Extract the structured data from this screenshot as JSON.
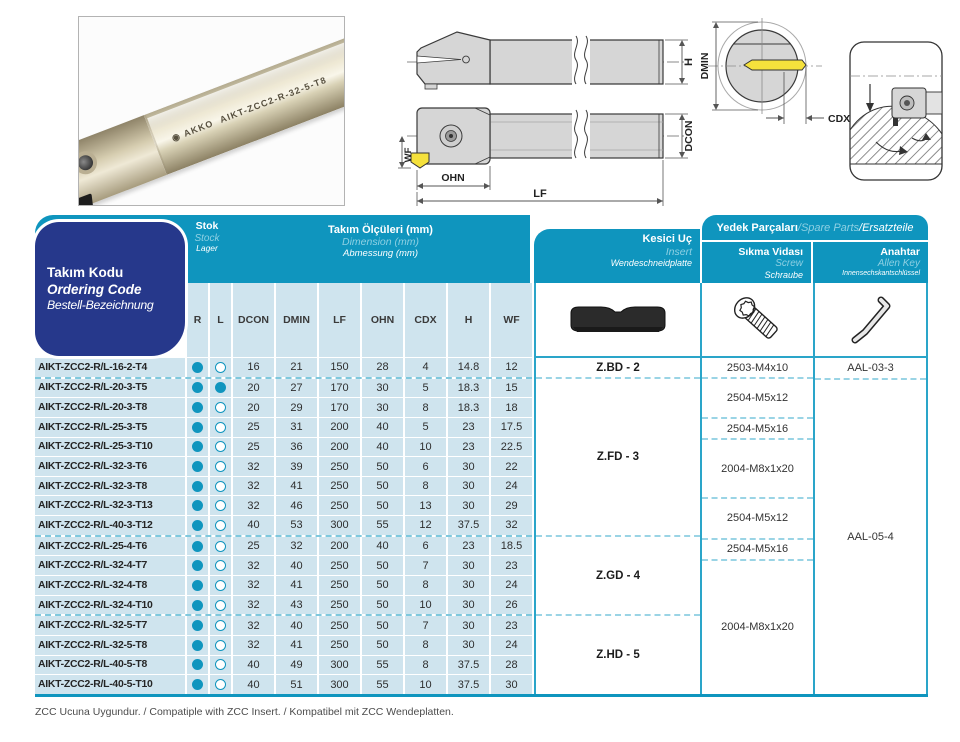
{
  "photo": {
    "brand": "AKKO",
    "marking": "AIKT-ZCC2-R-32-5-T8"
  },
  "diagram": {
    "h": "H",
    "dcon": "DCON",
    "dmin": "DMIN",
    "cdx": "CDX",
    "wf": "WF",
    "ohn": "OHN",
    "lf": "LF"
  },
  "colors": {
    "teal": "#0f95be",
    "dark_blue": "#26388b",
    "light_blue": "#cfe4ee",
    "cyan_line": "#2aa5c9",
    "dash": "#9ad4e5",
    "insert_yellow": "#f5e13c"
  },
  "table": {
    "code_header": {
      "tr": "Takım Kodu",
      "en": "Ordering Code",
      "de": "Bestell-Bezeichnung"
    },
    "stock_header": {
      "tr": "Stok",
      "en": "Stock",
      "de": "Lager"
    },
    "dim_header": {
      "tr": "Takım Ölçüleri (mm)",
      "en": "Dimension (mm)",
      "de": "Abmessung (mm)"
    },
    "spare_header": {
      "tr": "Yedek Parçaları",
      "en": "Spare Parts",
      "de": "Ersatzteile",
      "sep": " / "
    },
    "insert_header": {
      "tr": "Kesici Uç",
      "en": "Insert",
      "de": "Wendeschneidplatte"
    },
    "screw_header": {
      "tr": "Sıkma Vidası",
      "en": "Screw",
      "de": "Schraube"
    },
    "key_header": {
      "tr": "Anahtar",
      "en": "Allen Key",
      "de": "Innensechskantschlüssel"
    },
    "columns": [
      "R",
      "L",
      "DCON",
      "DMIN",
      "LF",
      "OHN",
      "CDX",
      "H",
      "WF"
    ],
    "rows": [
      {
        "code": "AIKT-ZCC2-R/L-16-2-T4",
        "r": true,
        "l": false,
        "vals": [
          "16",
          "21",
          "150",
          "28",
          "4",
          "14.8",
          "12"
        ],
        "sep": true
      },
      {
        "code": "AIKT-ZCC2-R/L-20-3-T5",
        "r": true,
        "l": true,
        "vals": [
          "20",
          "27",
          "170",
          "30",
          "5",
          "18.3",
          "15"
        ],
        "sep": false
      },
      {
        "code": "AIKT-ZCC2-R/L-20-3-T8",
        "r": true,
        "l": false,
        "vals": [
          "20",
          "29",
          "170",
          "30",
          "8",
          "18.3",
          "18"
        ],
        "sep": false
      },
      {
        "code": "AIKT-ZCC2-R/L-25-3-T5",
        "r": true,
        "l": false,
        "vals": [
          "25",
          "31",
          "200",
          "40",
          "5",
          "23",
          "17.5"
        ],
        "sep": false
      },
      {
        "code": "AIKT-ZCC2-R/L-25-3-T10",
        "r": true,
        "l": false,
        "vals": [
          "25",
          "36",
          "200",
          "40",
          "10",
          "23",
          "22.5"
        ],
        "sep": false
      },
      {
        "code": "AIKT-ZCC2-R/L-32-3-T6",
        "r": true,
        "l": false,
        "vals": [
          "32",
          "39",
          "250",
          "50",
          "6",
          "30",
          "22"
        ],
        "sep": false
      },
      {
        "code": "AIKT-ZCC2-R/L-32-3-T8",
        "r": true,
        "l": false,
        "vals": [
          "32",
          "41",
          "250",
          "50",
          "8",
          "30",
          "24"
        ],
        "sep": false
      },
      {
        "code": "AIKT-ZCC2-R/L-32-3-T13",
        "r": true,
        "l": false,
        "vals": [
          "32",
          "46",
          "250",
          "50",
          "13",
          "30",
          "29"
        ],
        "sep": false
      },
      {
        "code": "AIKT-ZCC2-R/L-40-3-T12",
        "r": true,
        "l": false,
        "vals": [
          "40",
          "53",
          "300",
          "55",
          "12",
          "37.5",
          "32"
        ],
        "sep": true
      },
      {
        "code": "AIKT-ZCC2-R/L-25-4-T6",
        "r": true,
        "l": false,
        "vals": [
          "25",
          "32",
          "200",
          "40",
          "6",
          "23",
          "18.5"
        ],
        "sep": false
      },
      {
        "code": "AIKT-ZCC2-R/L-32-4-T7",
        "r": true,
        "l": false,
        "vals": [
          "32",
          "40",
          "250",
          "50",
          "7",
          "30",
          "23"
        ],
        "sep": false
      },
      {
        "code": "AIKT-ZCC2-R/L-32-4-T8",
        "r": true,
        "l": false,
        "vals": [
          "32",
          "41",
          "250",
          "50",
          "8",
          "30",
          "24"
        ],
        "sep": false
      },
      {
        "code": "AIKT-ZCC2-R/L-32-4-T10",
        "r": true,
        "l": false,
        "vals": [
          "32",
          "43",
          "250",
          "50",
          "10",
          "30",
          "26"
        ],
        "sep": true
      },
      {
        "code": "AIKT-ZCC2-R/L-32-5-T7",
        "r": true,
        "l": false,
        "vals": [
          "32",
          "40",
          "250",
          "50",
          "7",
          "30",
          "23"
        ],
        "sep": false
      },
      {
        "code": "AIKT-ZCC2-R/L-32-5-T8",
        "r": true,
        "l": false,
        "vals": [
          "32",
          "41",
          "250",
          "50",
          "8",
          "30",
          "24"
        ],
        "sep": false
      },
      {
        "code": "AIKT-ZCC2-R/L-40-5-T8",
        "r": true,
        "l": false,
        "vals": [
          "40",
          "49",
          "300",
          "55",
          "8",
          "37.5",
          "28"
        ],
        "sep": false
      },
      {
        "code": "AIKT-ZCC2-R/L-40-5-T10",
        "r": true,
        "l": false,
        "vals": [
          "40",
          "51",
          "300",
          "55",
          "10",
          "37.5",
          "30"
        ],
        "sep": false
      }
    ],
    "insert_groups": [
      {
        "label": "Z.BD - 2",
        "span": 1
      },
      {
        "label": "Z.FD - 3",
        "span": 8
      },
      {
        "label": "Z.GD - 4",
        "span": 4
      },
      {
        "label": "Z.HD - 5",
        "span": 4
      }
    ],
    "screw_groups": [
      {
        "label": "2503-M4x10",
        "span": 1
      },
      {
        "label": "2504-M5x12",
        "span": 2
      },
      {
        "label": "2504-M5x16",
        "span": 1
      },
      {
        "label": "2004-M8x1x20",
        "span": 3
      },
      {
        "label": "2504-M5x12",
        "span": 2
      },
      {
        "label": "2504-M5x16",
        "span": 1
      },
      {
        "label": "2004-M8x1x20",
        "span": 7
      }
    ],
    "key_groups": [
      {
        "label": "AAL-03-3",
        "span": 1
      },
      {
        "label": "AAL-05-4",
        "span": 16
      }
    ]
  },
  "note": "ZCC Ucuna Uygundur. / Compatiple with ZCC Insert. / Kompatibel mit ZCC Wendeplatten."
}
